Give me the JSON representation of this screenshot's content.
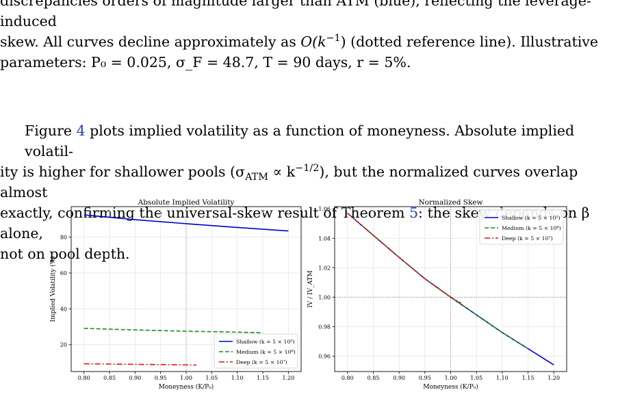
{
  "text": {
    "p1_l1": "discrepancies orders of magnitude larger than ATM (blue), reflecting the leverage-induced",
    "p1_l2a": "skew.  All curves decline approximately as ",
    "p1_l2b": "O(k",
    "p1_l2c": "−1",
    "p1_l2d": ")",
    "p1_l2e": " (dotted reference line).  Illustrative",
    "p1_l3": "parameters: P₀ = 0.025, σ_F = 48.7, T = 90 days, r = 5%.",
    "p2_fig_word": "Figure ",
    "p2_fig_ref": "4",
    "p2_l1": " plots implied volatility as a function of moneyness. Absolute implied volatil-",
    "p2_l2a": "ity is higher for shallower pools (σ",
    "p2_l2b": "ATM",
    "p2_l2c": " ∝ k",
    "p2_l2d": "−1/2",
    "p2_l2e": "), but the normalized curves overlap almost",
    "p2_l3a": "exactly, confirming the universal-skew result of Theorem ",
    "p2_thm_ref": "5",
    "p2_l3b": ": the skew depends on β alone,",
    "p2_l4": "not on pool depth."
  },
  "colors": {
    "shallow": "#0000cc",
    "medium": "#1a8a1a",
    "deep": "#e01010",
    "link": "#1f3fbf"
  },
  "chart_data": [
    {
      "type": "line",
      "title": "Absolute Implied Volatility",
      "xlabel": "Moneyness (K/P₀)",
      "ylabel": "Implied Volatility (%)",
      "xlim": [
        0.775,
        1.225
      ],
      "ylim": [
        5,
        97
      ],
      "xticks": [
        0.8,
        0.85,
        0.9,
        0.95,
        1.0,
        1.05,
        1.1,
        1.15,
        1.2
      ],
      "yticks": [
        20,
        40,
        60,
        80
      ],
      "xtick_labels": [
        "0.80",
        "0.85",
        "0.90",
        "0.95",
        "1.00",
        "1.05",
        "1.10",
        "1.15",
        "1.20"
      ],
      "ytick_labels": [
        "20",
        "40",
        "60",
        "80"
      ],
      "grid": true,
      "reference_lines": [
        {
          "axis": "x",
          "value": 1.0
        }
      ],
      "legend_position": "lower-right",
      "series": [
        {
          "name": "Shallow (k = 5 × 10⁵)",
          "color": "#0000cc",
          "dash": "solid",
          "x": [
            0.8,
            0.9,
            1.0,
            1.1,
            1.2
          ],
          "y": [
            92.4,
            89.7,
            87.5,
            85.4,
            83.4
          ]
        },
        {
          "name": "Medium (k = 5 × 10⁶)",
          "color": "#1a8a1a",
          "dash": "dashed",
          "x": [
            0.8,
            0.9,
            1.0,
            1.1,
            1.15
          ],
          "y": [
            29.1,
            28.2,
            27.5,
            27.0,
            26.6
          ]
        },
        {
          "name": "Deep (k = 5 × 10⁷)",
          "color": "#e01010",
          "dash": "dashdot",
          "x": [
            0.8,
            0.9,
            1.0,
            1.02
          ],
          "y": [
            9.3,
            9.0,
            8.7,
            8.6
          ]
        }
      ]
    },
    {
      "type": "line",
      "title": "Normalized Skew",
      "xlabel": "Moneyness (K/P₀)",
      "ylabel": "IV / IV_ATM",
      "xlim": [
        0.775,
        1.225
      ],
      "ylim": [
        0.9495,
        1.0615
      ],
      "xticks": [
        0.8,
        0.85,
        0.9,
        0.95,
        1.0,
        1.05,
        1.1,
        1.15,
        1.2
      ],
      "yticks": [
        0.96,
        0.98,
        1.0,
        1.02,
        1.04,
        1.06
      ],
      "xtick_labels": [
        "0.80",
        "0.85",
        "0.90",
        "0.95",
        "1.00",
        "1.05",
        "1.10",
        "1.15",
        "1.20"
      ],
      "ytick_labels": [
        "0.96",
        "0.98",
        "1.00",
        "1.02",
        "1.04",
        "1.06"
      ],
      "grid": true,
      "reference_lines": [
        {
          "axis": "x",
          "value": 1.0
        },
        {
          "axis": "y",
          "value": 1.0
        }
      ],
      "legend_position": "upper-right",
      "series": [
        {
          "name": "Shallow (k = 5 × 10⁵)",
          "color": "#0000cc",
          "dash": "solid",
          "x": [
            0.8,
            0.85,
            0.9,
            0.95,
            1.0,
            1.05,
            1.1,
            1.15,
            1.2
          ],
          "y": [
            1.057,
            1.042,
            1.027,
            1.0125,
            1.0,
            0.988,
            0.976,
            0.965,
            0.954
          ]
        },
        {
          "name": "Medium (k = 5 × 10⁶)",
          "color": "#1a8a1a",
          "dash": "dashed",
          "x": [
            0.8,
            0.85,
            0.9,
            0.95,
            1.0,
            1.05,
            1.1,
            1.15
          ],
          "y": [
            1.057,
            1.042,
            1.027,
            1.0125,
            1.0,
            0.988,
            0.976,
            0.965
          ]
        },
        {
          "name": "Deep (k = 5 × 10⁷)",
          "color": "#e01010",
          "dash": "dashdot",
          "x": [
            0.8,
            0.85,
            0.9,
            0.95,
            1.0,
            1.02
          ],
          "y": [
            1.057,
            1.042,
            1.027,
            1.0125,
            1.0,
            0.996
          ]
        }
      ]
    }
  ]
}
